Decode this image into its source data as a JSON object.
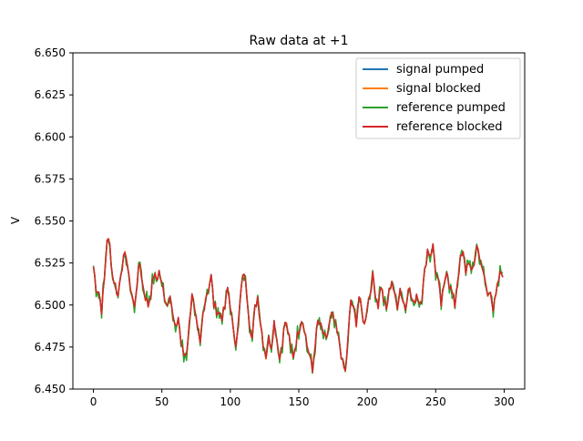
{
  "chart_data": {
    "type": "line",
    "title": "Raw data at +1",
    "xlabel": "",
    "ylabel": "V",
    "xlim": [
      -15,
      315
    ],
    "ylim": [
      6.45,
      6.65
    ],
    "xticks": [
      0,
      50,
      100,
      150,
      200,
      250,
      300
    ],
    "yticks": [
      6.45,
      6.475,
      6.5,
      6.525,
      6.55,
      6.575,
      6.6,
      6.625,
      6.65
    ],
    "xtick_labels": [
      "0",
      "50",
      "100",
      "150",
      "200",
      "250",
      "300"
    ],
    "ytick_labels": [
      "6.450",
      "6.475",
      "6.500",
      "6.525",
      "6.550",
      "6.575",
      "6.600",
      "6.625",
      "6.650"
    ],
    "grid": false,
    "legend_position": "top-right",
    "x_range": [
      0,
      299
    ],
    "series": [
      {
        "name": "signal pumped",
        "color": "#1f77b4"
      },
      {
        "name": "signal blocked",
        "color": "#ff7f0e"
      },
      {
        "name": "reference pumped",
        "color": "#2ca02c"
      },
      {
        "name": "reference blocked",
        "color": "#d62728"
      }
    ],
    "keypoints": [
      [
        0,
        6.523
      ],
      [
        2,
        6.51
      ],
      [
        4,
        6.508
      ],
      [
        6,
        6.497
      ],
      [
        8,
        6.515
      ],
      [
        10,
        6.54
      ],
      [
        12,
        6.535
      ],
      [
        14,
        6.517
      ],
      [
        16,
        6.512
      ],
      [
        18,
        6.505
      ],
      [
        20,
        6.52
      ],
      [
        22,
        6.527
      ],
      [
        24,
        6.53
      ],
      [
        26,
        6.515
      ],
      [
        28,
        6.507
      ],
      [
        30,
        6.498
      ],
      [
        32,
        6.515
      ],
      [
        34,
        6.525
      ],
      [
        36,
        6.512
      ],
      [
        38,
        6.505
      ],
      [
        40,
        6.5
      ],
      [
        42,
        6.507
      ],
      [
        44,
        6.518
      ],
      [
        46,
        6.515
      ],
      [
        48,
        6.52
      ],
      [
        50,
        6.512
      ],
      [
        52,
        6.505
      ],
      [
        54,
        6.5
      ],
      [
        56,
        6.508
      ],
      [
        58,
        6.493
      ],
      [
        60,
        6.485
      ],
      [
        62,
        6.493
      ],
      [
        64,
        6.477
      ],
      [
        66,
        6.47
      ],
      [
        68,
        6.472
      ],
      [
        70,
        6.488
      ],
      [
        72,
        6.508
      ],
      [
        74,
        6.495
      ],
      [
        76,
        6.485
      ],
      [
        78,
        6.476
      ],
      [
        80,
        6.495
      ],
      [
        82,
        6.505
      ],
      [
        84,
        6.51
      ],
      [
        86,
        6.517
      ],
      [
        88,
        6.5
      ],
      [
        90,
        6.497
      ],
      [
        92,
        6.495
      ],
      [
        94,
        6.493
      ],
      [
        96,
        6.498
      ],
      [
        98,
        6.51
      ],
      [
        100,
        6.5
      ],
      [
        102,
        6.485
      ],
      [
        104,
        6.478
      ],
      [
        106,
        6.49
      ],
      [
        108,
        6.51
      ],
      [
        110,
        6.52
      ],
      [
        112,
        6.508
      ],
      [
        114,
        6.49
      ],
      [
        116,
        6.48
      ],
      [
        118,
        6.498
      ],
      [
        120,
        6.505
      ],
      [
        122,
        6.49
      ],
      [
        124,
        6.478
      ],
      [
        126,
        6.47
      ],
      [
        128,
        6.48
      ],
      [
        130,
        6.476
      ],
      [
        132,
        6.49
      ],
      [
        134,
        6.48
      ],
      [
        136,
        6.468
      ],
      [
        138,
        6.478
      ],
      [
        140,
        6.49
      ],
      [
        142,
        6.485
      ],
      [
        144,
        6.474
      ],
      [
        146,
        6.47
      ],
      [
        148,
        6.478
      ],
      [
        150,
        6.485
      ],
      [
        152,
        6.492
      ],
      [
        154,
        6.487
      ],
      [
        156,
        6.476
      ],
      [
        158,
        6.47
      ],
      [
        160,
        6.46
      ],
      [
        162,
        6.478
      ],
      [
        164,
        6.49
      ],
      [
        166,
        6.487
      ],
      [
        168,
        6.483
      ],
      [
        170,
        6.478
      ],
      [
        172,
        6.488
      ],
      [
        174,
        6.494
      ],
      [
        176,
        6.49
      ],
      [
        178,
        6.483
      ],
      [
        180,
        6.476
      ],
      [
        182,
        6.465
      ],
      [
        184,
        6.46
      ],
      [
        186,
        6.48
      ],
      [
        188,
        6.503
      ],
      [
        190,
        6.497
      ],
      [
        192,
        6.49
      ],
      [
        194,
        6.505
      ],
      [
        196,
        6.496
      ],
      [
        198,
        6.488
      ],
      [
        200,
        6.5
      ],
      [
        202,
        6.507
      ],
      [
        204,
        6.517
      ],
      [
        206,
        6.507
      ],
      [
        208,
        6.5
      ],
      [
        210,
        6.512
      ],
      [
        212,
        6.503
      ],
      [
        214,
        6.497
      ],
      [
        216,
        6.508
      ],
      [
        218,
        6.515
      ],
      [
        220,
        6.505
      ],
      [
        222,
        6.5
      ],
      [
        224,
        6.51
      ],
      [
        226,
        6.503
      ],
      [
        228,
        6.498
      ],
      [
        230,
        6.512
      ],
      [
        232,
        6.505
      ],
      [
        234,
        6.5
      ],
      [
        236,
        6.507
      ],
      [
        238,
        6.502
      ],
      [
        240,
        6.505
      ],
      [
        242,
        6.52
      ],
      [
        244,
        6.533
      ],
      [
        246,
        6.53
      ],
      [
        248,
        6.535
      ],
      [
        250,
        6.52
      ],
      [
        252,
        6.513
      ],
      [
        254,
        6.5
      ],
      [
        256,
        6.51
      ],
      [
        258,
        6.522
      ],
      [
        260,
        6.512
      ],
      [
        262,
        6.507
      ],
      [
        264,
        6.5
      ],
      [
        266,
        6.515
      ],
      [
        268,
        6.527
      ],
      [
        270,
        6.53
      ],
      [
        272,
        6.52
      ],
      [
        274,
        6.527
      ],
      [
        276,
        6.518
      ],
      [
        278,
        6.525
      ],
      [
        280,
        6.535
      ],
      [
        282,
        6.53
      ],
      [
        284,
        6.52
      ],
      [
        286,
        6.515
      ],
      [
        288,
        6.505
      ],
      [
        290,
        6.51
      ],
      [
        292,
        6.497
      ],
      [
        294,
        6.505
      ],
      [
        296,
        6.515
      ],
      [
        297,
        6.518
      ],
      [
        298,
        6.519
      ]
    ]
  }
}
